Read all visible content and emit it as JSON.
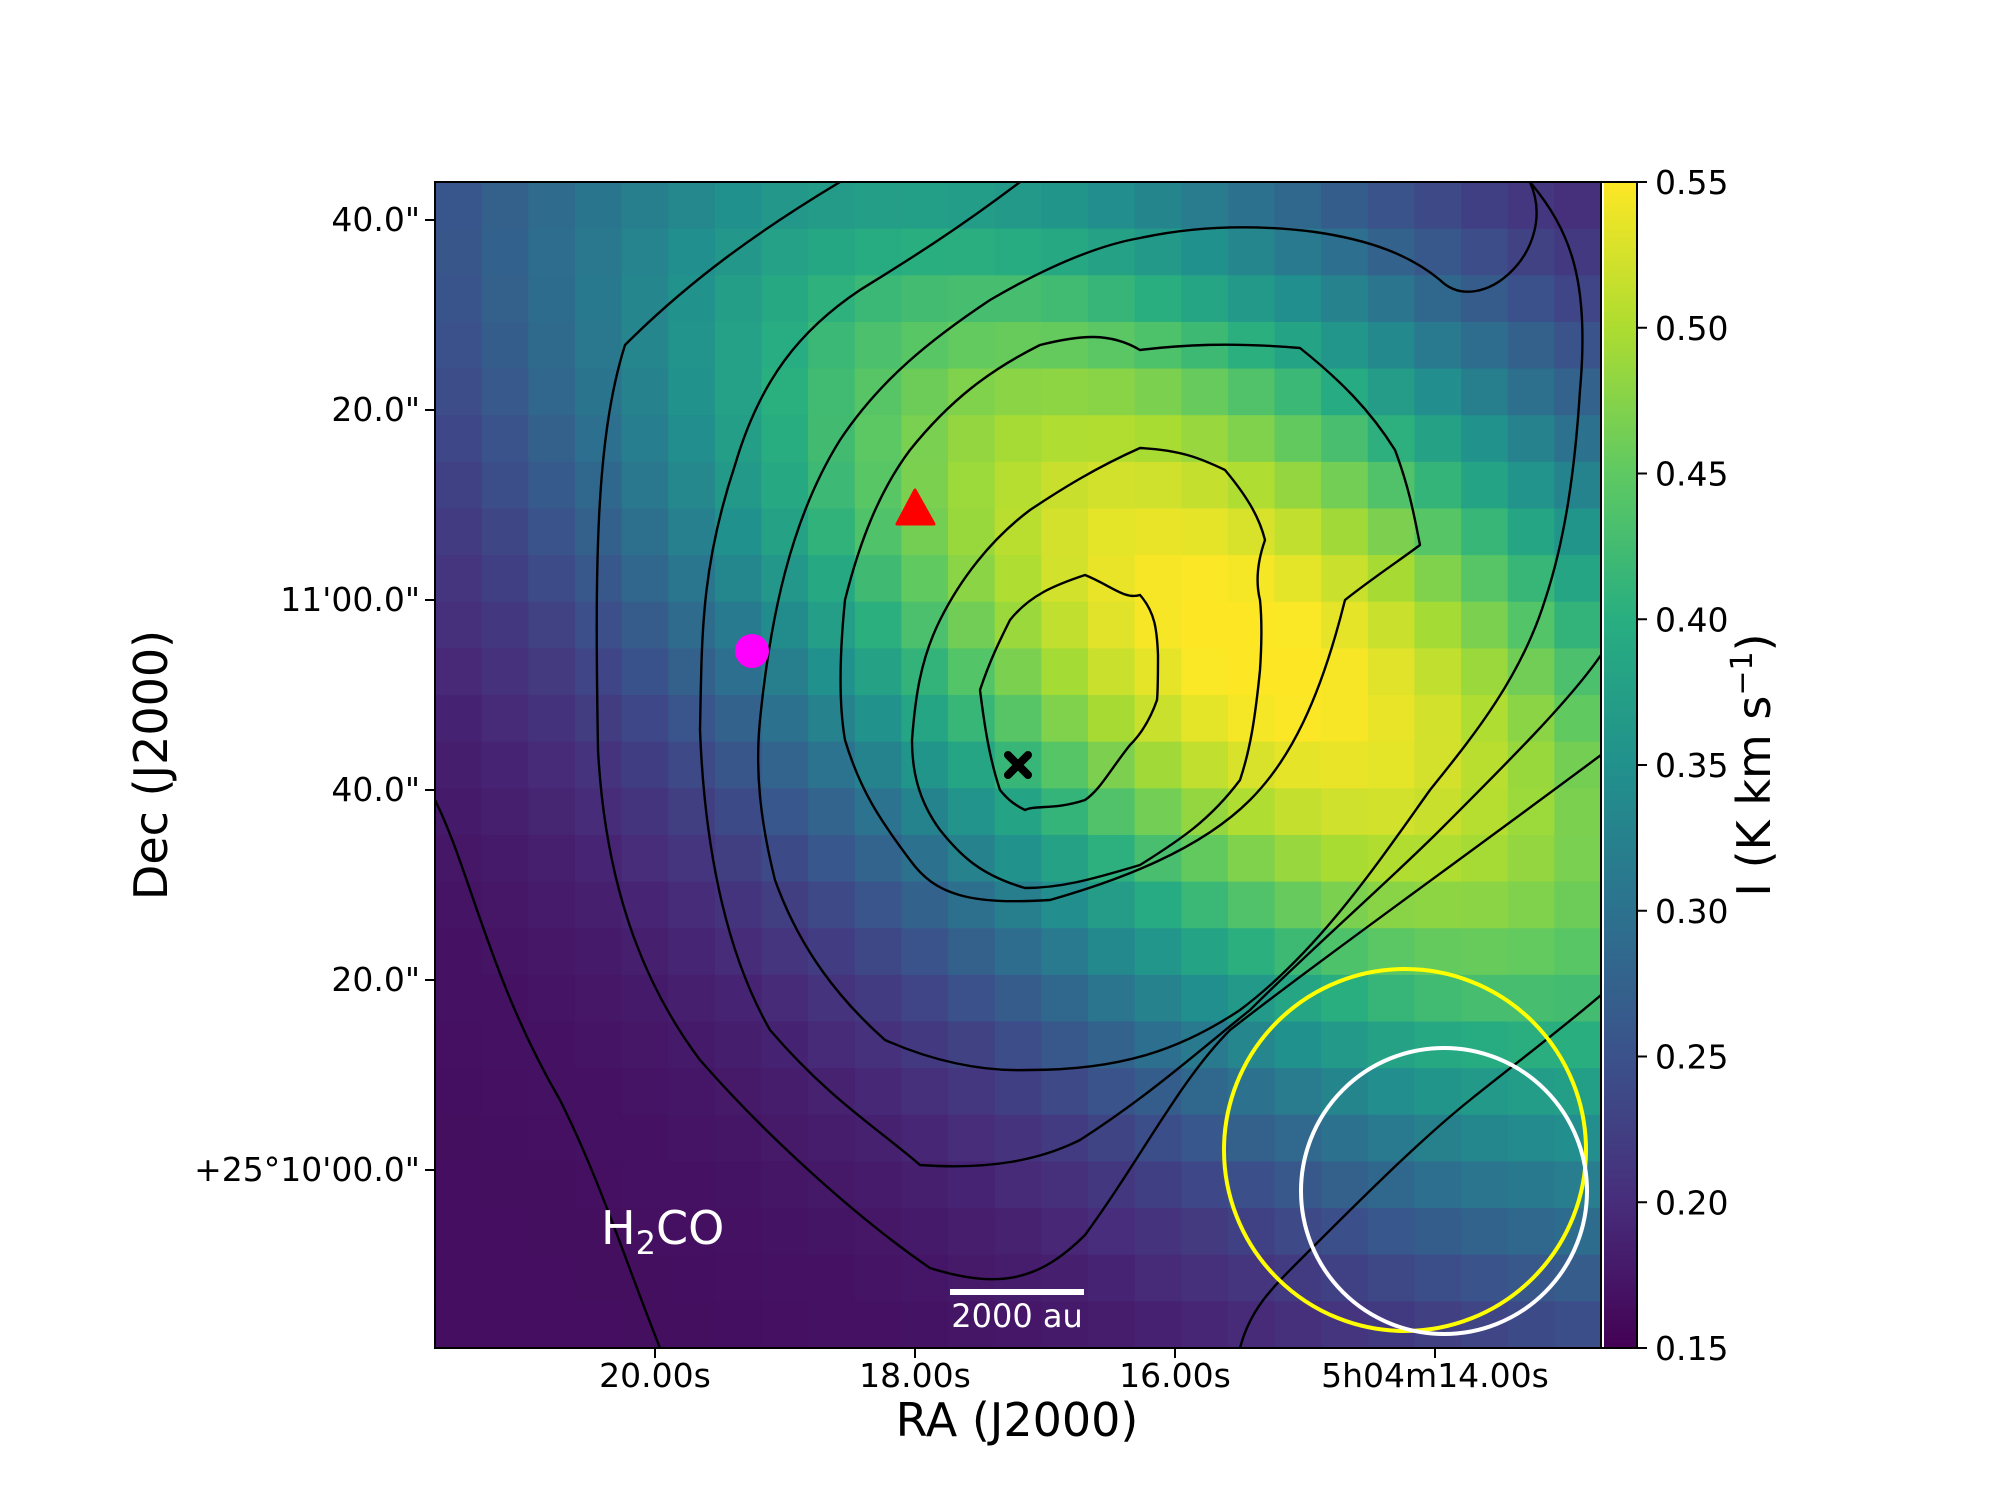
{
  "chart_data": {
    "type": "heatmap",
    "molecule_label": {
      "main": "H",
      "sub": "2",
      "tail": "CO"
    },
    "xlabel": "RA (J2000)",
    "ylabel": "Dec (J2000)",
    "x_ticks": [
      "20.00s",
      "18.00s",
      "16.00s",
      "5h04m14.00s"
    ],
    "y_ticks": [
      "40.0\"",
      "20.0\"",
      "11'00.0\"",
      "40.0\"",
      "20.0\"",
      "+25°10'00.0\""
    ],
    "colorbar": {
      "label": {
        "main": "I (K km s",
        "sup": "−1",
        "tail": ")"
      },
      "range": [
        0.15,
        0.55
      ],
      "ticks": [
        "0.55",
        "0.50",
        "0.45",
        "0.40",
        "0.35",
        "0.30",
        "0.25",
        "0.20",
        "0.15"
      ],
      "colormap": "viridis"
    },
    "scalebar_label": "2000 au",
    "markers": [
      {
        "name": "circle",
        "color": "#ff00ff"
      },
      {
        "name": "triangle",
        "color": "#ff0000"
      },
      {
        "name": "cross",
        "color": "#000000"
      }
    ],
    "beams": [
      {
        "name": "yellow-beam",
        "color": "#ffff00"
      },
      {
        "name": "white-beam",
        "color": "#ffffff"
      }
    ],
    "contour_color": "#000000"
  }
}
